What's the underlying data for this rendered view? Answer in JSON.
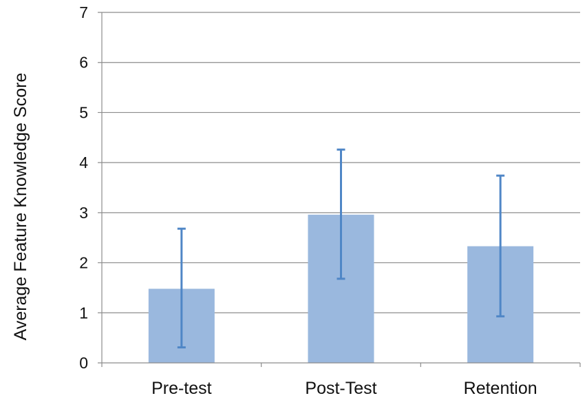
{
  "chart_data": {
    "type": "bar",
    "title": "",
    "xlabel": "",
    "ylabel": "Average Feature Knowledge Score",
    "categories": [
      "Pre-test",
      "Post-Test",
      "Retention"
    ],
    "values": [
      1.48,
      2.96,
      2.33
    ],
    "error_low": [
      0.31,
      1.68,
      0.93
    ],
    "error_high": [
      2.68,
      4.26,
      3.74
    ],
    "ylim": [
      0,
      7
    ],
    "yticks": [
      "0",
      "1",
      "2",
      "3",
      "4",
      "5",
      "6",
      "7"
    ],
    "grid": true,
    "legend": "none",
    "colors": {
      "bar": "#9ab8de",
      "error_bar": "#4f86c6",
      "grid": "#8c8c8c",
      "axis": "#8c8c8c"
    }
  }
}
